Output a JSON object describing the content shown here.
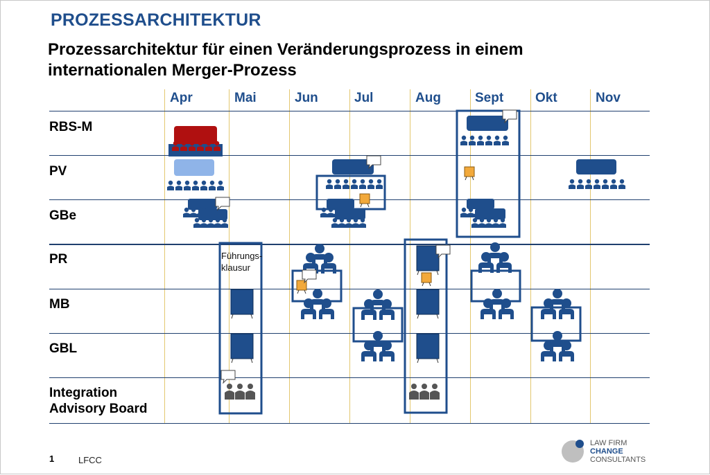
{
  "header": {
    "kicker": "PROZESSARCHITEKTUR",
    "title_line1": "Prozessarchitektur für einen Veränderungsprozess in einem",
    "title_line2": "internationalen Merger-Prozess"
  },
  "months": [
    "Apr",
    "Mai",
    "Jun",
    "Jul",
    "Aug",
    "Sept",
    "Okt",
    "Nov"
  ],
  "rows": [
    "RBS-M",
    "PV",
    "GBe",
    "PR",
    "MB",
    "GBL",
    "Integration",
    "Advisory Board"
  ],
  "annotation": {
    "line1": "Führungs-",
    "line2": "klausur"
  },
  "footer": {
    "page": "1",
    "source": "LFCC"
  },
  "logo": {
    "line1": "LAW FIRM",
    "line2": "CHANGE",
    "line3": "CONSULTANTS"
  },
  "colors": {
    "primary_blue": "#1f4e8c",
    "dark_red": "#b01010",
    "light_blue": "#8fb4e8",
    "orange": "#f2a93b",
    "grey": "#555555",
    "grid_line": "#1f3f6e",
    "month_divider": "#e3c76f"
  },
  "icons": [
    "meeting-group-icon",
    "presenter-group-icon",
    "flipchart-icon",
    "speech-bubble-icon",
    "document-icon",
    "board-icon"
  ]
}
